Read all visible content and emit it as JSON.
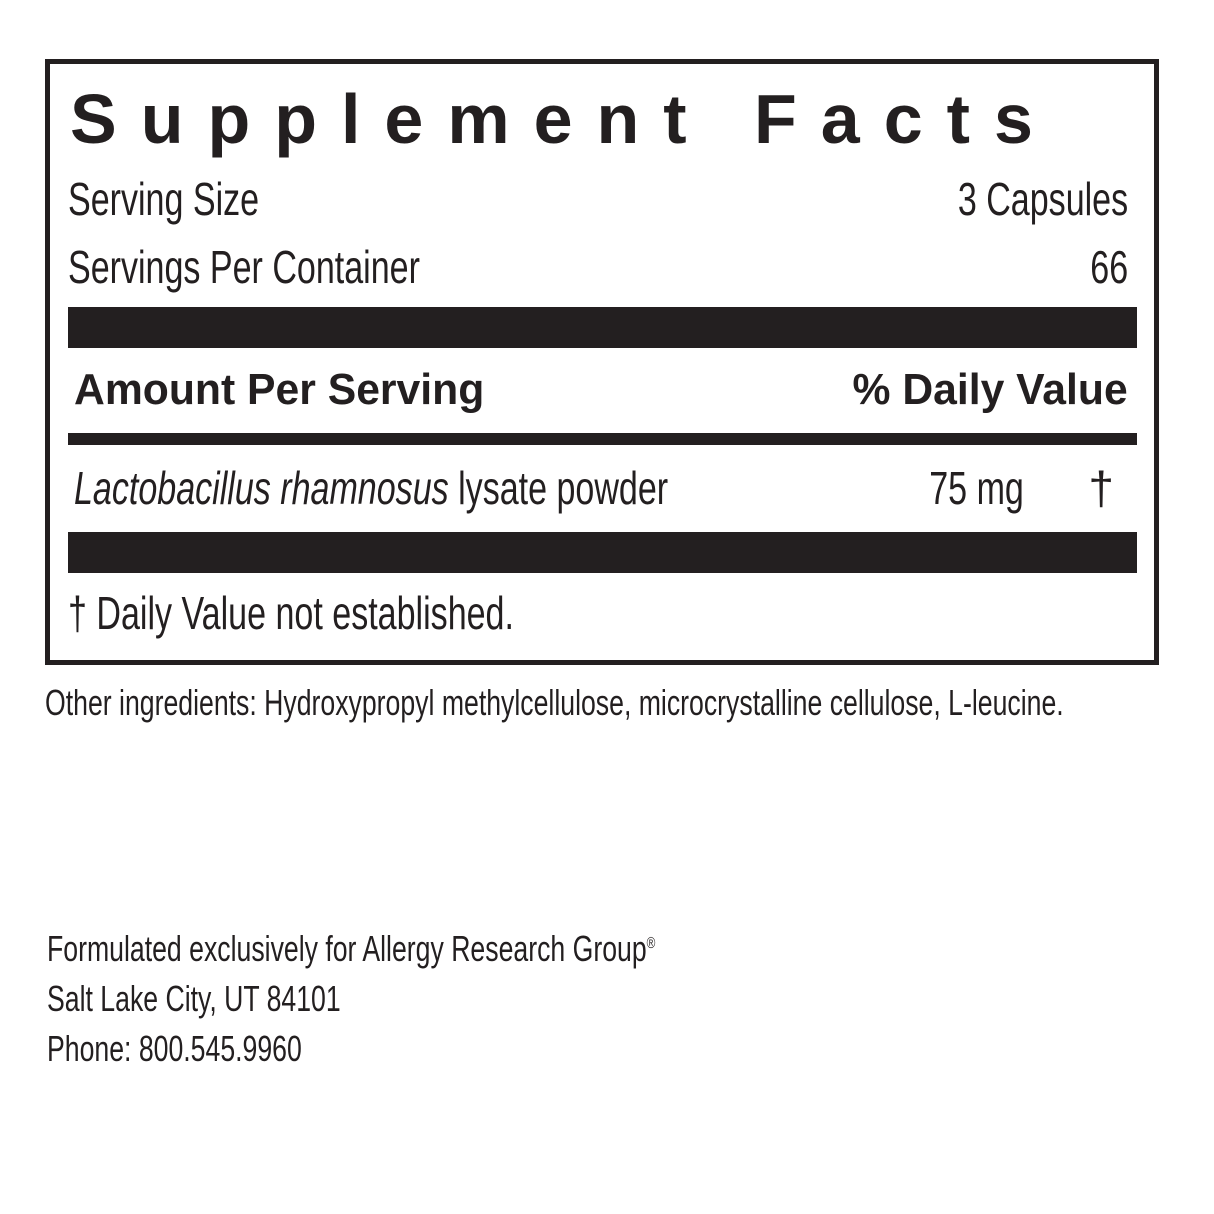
{
  "label": {
    "title": "Supplement Facts",
    "serving_size": {
      "label": "Serving Size",
      "value": "3 Capsules"
    },
    "servings_per_container": {
      "label": "Servings Per Container",
      "value": "66"
    },
    "header": {
      "amount": "Amount Per Serving",
      "daily_value": "% Daily Value"
    },
    "ingredients": [
      {
        "name": "Lactobacillus rhamnosus",
        "description": "lysate powder",
        "amount": "75 mg",
        "daily_value": "†"
      }
    ],
    "footnote": "† Daily Value not established."
  },
  "other_ingredients": "Other ingredients: Hydroxypropyl methylcellulose, microcrystalline cellulose, L-leucine.",
  "manufacturer": {
    "line1": "Formulated exclusively for Allergy Research Group",
    "registered_mark": "®",
    "line2": "Salt Lake City, UT 84101",
    "line3": "Phone: 800.545.9960"
  }
}
